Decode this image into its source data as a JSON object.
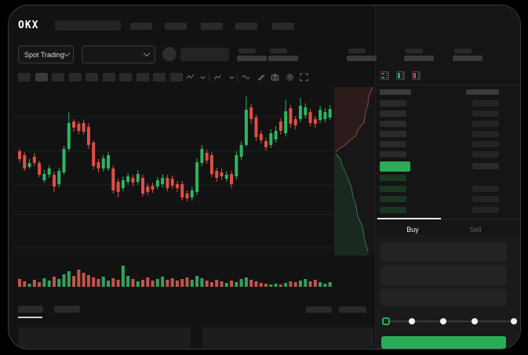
{
  "app": {
    "logo_text": "OKX"
  },
  "market_bar": {
    "market_selector_label": "Spot Trading"
  },
  "orderbook": {
    "view_icons": [
      "orderbook-both-icon",
      "orderbook-bids-icon",
      "orderbook-asks-icon"
    ],
    "ask_rows": 6,
    "bid_rows": 4,
    "tabs": {
      "buy": "Buy",
      "sell": "Sell"
    }
  },
  "colors": {
    "green": "#2cab56",
    "red": "#de4e44",
    "candle_green": "#2db563",
    "candle_red": "#df4f45",
    "vol_green": "#35a05e",
    "vol_red": "#c4544c",
    "bid_bar": "rgba(44,171,86,0.22)",
    "screen_bg": "#121212",
    "panel_bg": "#1a1a1a",
    "grid": "#1e1e1e"
  },
  "chart_data": [
    {
      "type": "candlestick",
      "title": "",
      "xlabel": "",
      "ylabel": "",
      "axis_labels_visible": false,
      "grid": true,
      "y_unit": "px_from_chart_top",
      "candles": [
        [
          "r",
          87,
          97,
          84,
          101
        ],
        [
          "r",
          92,
          109,
          88,
          112
        ],
        [
          "g",
          102,
          107,
          97,
          109
        ],
        [
          "r",
          94,
          102,
          89,
          106
        ],
        [
          "r",
          102,
          117,
          99,
          120
        ],
        [
          "g",
          116,
          124,
          111,
          127
        ],
        [
          "g",
          109,
          117,
          105,
          121
        ],
        [
          "r",
          117,
          132,
          113,
          139
        ],
        [
          "g",
          112,
          129,
          108,
          133
        ],
        [
          "g",
          84,
          114,
          80,
          117
        ],
        [
          "g",
          51,
          84,
          37,
          87
        ],
        [
          "r",
          49,
          57,
          46,
          62
        ],
        [
          "r",
          52,
          61,
          49,
          65
        ],
        [
          "r",
          51,
          62,
          47,
          66
        ],
        [
          "r",
          56,
          79,
          51,
          84
        ],
        [
          "r",
          76,
          106,
          73,
          110
        ],
        [
          "r",
          101,
          109,
          97,
          114
        ],
        [
          "g",
          96,
          109,
          92,
          113
        ],
        [
          "g",
          92,
          109,
          88,
          112
        ],
        [
          "r",
          109,
          137,
          105,
          141
        ],
        [
          "r",
          126,
          139,
          122,
          146
        ],
        [
          "g",
          124,
          134,
          119,
          138
        ],
        [
          "g",
          119,
          126,
          115,
          130
        ],
        [
          "r",
          121,
          127,
          117,
          132
        ],
        [
          "g",
          116,
          126,
          111,
          130
        ],
        [
          "r",
          121,
          141,
          117,
          145
        ],
        [
          "r",
          132,
          139,
          128,
          143
        ],
        [
          "r",
          131,
          136,
          127,
          140
        ],
        [
          "g",
          124,
          132,
          120,
          136
        ],
        [
          "g",
          121,
          129,
          116,
          133
        ],
        [
          "r",
          121,
          134,
          117,
          138
        ],
        [
          "r",
          122,
          131,
          118,
          135
        ],
        [
          "r",
          129,
          134,
          125,
          139
        ],
        [
          "r",
          129,
          146,
          125,
          150
        ],
        [
          "r",
          141,
          147,
          137,
          151
        ],
        [
          "g",
          137,
          146,
          132,
          150
        ],
        [
          "g",
          101,
          139,
          96,
          143
        ],
        [
          "g",
          84,
          102,
          79,
          106
        ],
        [
          "r",
          89,
          99,
          85,
          103
        ],
        [
          "r",
          92,
          116,
          88,
          120
        ],
        [
          "r",
          112,
          121,
          108,
          126
        ],
        [
          "r",
          114,
          119,
          109,
          124
        ],
        [
          "g",
          117,
          122,
          112,
          126
        ],
        [
          "r",
          116,
          129,
          112,
          134
        ],
        [
          "g",
          92,
          119,
          87,
          123
        ],
        [
          "g",
          79,
          94,
          74,
          98
        ],
        [
          "g",
          34,
          79,
          17,
          81
        ],
        [
          "r",
          31,
          46,
          27,
          52
        ],
        [
          "r",
          44,
          69,
          40,
          74
        ],
        [
          "r",
          65,
          73,
          61,
          77
        ],
        [
          "r",
          74,
          82,
          70,
          86
        ],
        [
          "g",
          64,
          79,
          59,
          83
        ],
        [
          "g",
          61,
          72,
          55,
          76
        ],
        [
          "r",
          49,
          61,
          45,
          66
        ],
        [
          "g",
          36,
          64,
          21,
          68
        ],
        [
          "r",
          32,
          52,
          28,
          57
        ],
        [
          "r",
          46,
          54,
          42,
          59
        ],
        [
          "g",
          29,
          46,
          19,
          50
        ],
        [
          "g",
          31,
          41,
          26,
          45
        ],
        [
          "r",
          37,
          51,
          33,
          55
        ],
        [
          "r",
          46,
          52,
          42,
          57
        ],
        [
          "g",
          34,
          47,
          29,
          51
        ],
        [
          "g",
          37,
          46,
          32,
          50
        ],
        [
          "g",
          33,
          44,
          28,
          47
        ]
      ]
    },
    {
      "type": "bar",
      "name": "volume",
      "values": [
        10,
        7,
        4,
        9,
        6,
        11,
        8,
        13,
        10,
        16,
        20,
        14,
        22,
        18,
        15,
        12,
        10,
        13,
        8,
        11,
        9,
        27,
        14,
        10,
        7,
        9,
        12,
        8,
        10,
        13,
        9,
        11,
        8,
        10,
        12,
        9,
        14,
        11,
        8,
        6,
        9,
        7,
        5,
        8,
        6,
        10,
        12,
        9,
        7,
        5,
        4,
        3,
        4,
        3,
        5,
        7,
        6,
        8,
        10,
        7,
        9,
        6,
        4,
        6
      ]
    },
    {
      "type": "area",
      "name": "depth",
      "ask_curve": [
        [
          49,
          0
        ],
        [
          44,
          12
        ],
        [
          43,
          22
        ],
        [
          40,
          32
        ],
        [
          38,
          45
        ],
        [
          30,
          55
        ],
        [
          28,
          62
        ],
        [
          20,
          68
        ],
        [
          14,
          74
        ],
        [
          6,
          79
        ],
        [
          2,
          83
        ]
      ],
      "bid_curve": [
        [
          2,
          85
        ],
        [
          8,
          92
        ],
        [
          10,
          100
        ],
        [
          14,
          108
        ],
        [
          18,
          118
        ],
        [
          22,
          128
        ],
        [
          24,
          140
        ],
        [
          28,
          152
        ],
        [
          30,
          165
        ],
        [
          36,
          178
        ],
        [
          38,
          192
        ],
        [
          43,
          210
        ]
      ]
    }
  ]
}
